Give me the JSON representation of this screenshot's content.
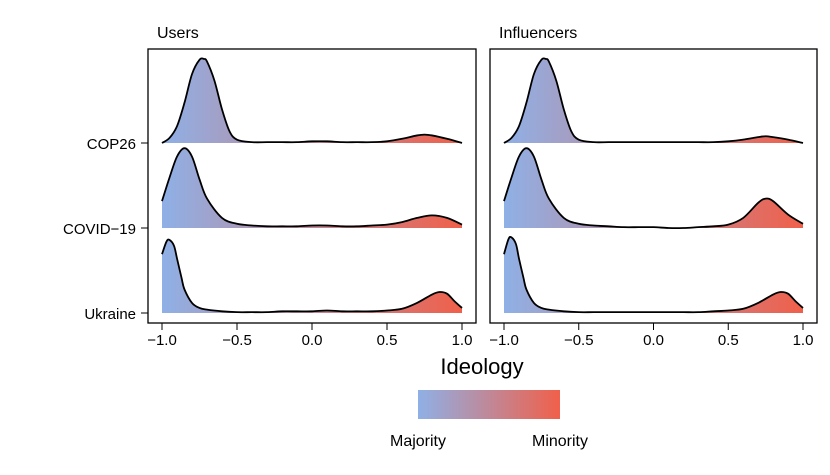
{
  "chart_data": {
    "type": "ridgeline-density",
    "xlabel": "Ideology",
    "xlim": [
      -1.0,
      1.0
    ],
    "x_ticks": [
      -1.0,
      -0.5,
      0.0,
      0.5,
      1.0
    ],
    "x_tick_labels": [
      "−1.0",
      "−0.5",
      "0.0",
      "0.5",
      "1.0"
    ],
    "rows": [
      "COP26",
      "COVID−19",
      "Ukraine"
    ],
    "fill_gradient": {
      "from": "#8fb0e6",
      "to": "#f0604a",
      "axis": "ideology"
    },
    "legend": {
      "low_label": "Majority",
      "high_label": "Minority",
      "placement": "bottom-center"
    },
    "grid": false,
    "panels": [
      {
        "title": "Users",
        "series": [
          {
            "row": "COP26",
            "x": [
              -1.0,
              -0.95,
              -0.9,
              -0.85,
              -0.8,
              -0.75,
              -0.72,
              -0.7,
              -0.65,
              -0.6,
              -0.55,
              -0.5,
              -0.4,
              -0.3,
              -0.2,
              -0.1,
              0.0,
              0.1,
              0.2,
              0.3,
              0.4,
              0.5,
              0.6,
              0.7,
              0.75,
              0.8,
              0.9,
              1.0
            ],
            "density": [
              0.0,
              0.06,
              0.2,
              0.48,
              0.82,
              0.99,
              1.0,
              0.97,
              0.74,
              0.4,
              0.14,
              0.04,
              0.01,
              0.01,
              0.01,
              0.01,
              0.02,
              0.02,
              0.01,
              0.01,
              0.01,
              0.02,
              0.05,
              0.09,
              0.1,
              0.09,
              0.05,
              0.0
            ]
          },
          {
            "row": "COVID−19",
            "x": [
              -1.0,
              -0.95,
              -0.9,
              -0.85,
              -0.8,
              -0.75,
              -0.7,
              -0.6,
              -0.5,
              -0.4,
              -0.3,
              -0.2,
              -0.1,
              0.0,
              0.1,
              0.2,
              0.3,
              0.4,
              0.5,
              0.6,
              0.7,
              0.8,
              0.9,
              1.0
            ],
            "density": [
              0.32,
              0.6,
              0.85,
              0.95,
              0.85,
              0.58,
              0.35,
              0.12,
              0.05,
              0.03,
              0.02,
              0.02,
              0.02,
              0.03,
              0.03,
              0.02,
              0.02,
              0.03,
              0.04,
              0.07,
              0.12,
              0.15,
              0.12,
              0.04
            ]
          },
          {
            "row": "Ukraine",
            "x": [
              -1.0,
              -0.97,
              -0.95,
              -0.92,
              -0.9,
              -0.87,
              -0.85,
              -0.8,
              -0.75,
              -0.7,
              -0.6,
              -0.5,
              -0.4,
              -0.3,
              -0.2,
              -0.1,
              0.0,
              0.1,
              0.2,
              0.3,
              0.4,
              0.5,
              0.6,
              0.7,
              0.8,
              0.85,
              0.9,
              0.95,
              1.0
            ],
            "density": [
              0.7,
              0.85,
              0.87,
              0.8,
              0.65,
              0.42,
              0.28,
              0.12,
              0.06,
              0.04,
              0.02,
              0.01,
              0.01,
              0.01,
              0.02,
              0.02,
              0.02,
              0.03,
              0.02,
              0.02,
              0.02,
              0.03,
              0.05,
              0.12,
              0.22,
              0.25,
              0.23,
              0.14,
              0.06
            ]
          }
        ]
      },
      {
        "title": "Influencers",
        "series": [
          {
            "row": "COP26",
            "x": [
              -1.0,
              -0.95,
              -0.9,
              -0.85,
              -0.8,
              -0.75,
              -0.72,
              -0.7,
              -0.65,
              -0.6,
              -0.55,
              -0.5,
              -0.4,
              -0.3,
              -0.2,
              -0.1,
              0.0,
              0.1,
              0.2,
              0.3,
              0.4,
              0.5,
              0.6,
              0.7,
              0.75,
              0.8,
              0.9,
              1.0
            ],
            "density": [
              0.0,
              0.06,
              0.2,
              0.48,
              0.82,
              0.99,
              1.0,
              0.97,
              0.74,
              0.4,
              0.14,
              0.04,
              0.01,
              0.01,
              0.01,
              0.01,
              0.01,
              0.01,
              0.01,
              0.01,
              0.01,
              0.02,
              0.04,
              0.07,
              0.08,
              0.07,
              0.04,
              0.0
            ]
          },
          {
            "row": "COVID−19",
            "x": [
              -1.0,
              -0.95,
              -0.9,
              -0.85,
              -0.8,
              -0.75,
              -0.7,
              -0.6,
              -0.5,
              -0.4,
              -0.3,
              -0.2,
              -0.1,
              0.0,
              0.1,
              0.2,
              0.3,
              0.4,
              0.5,
              0.6,
              0.7,
              0.75,
              0.8,
              0.9,
              1.0
            ],
            "density": [
              0.32,
              0.6,
              0.85,
              0.95,
              0.85,
              0.58,
              0.35,
              0.12,
              0.05,
              0.03,
              0.02,
              0.01,
              0.01,
              0.01,
              0.0,
              0.0,
              0.01,
              0.02,
              0.04,
              0.12,
              0.3,
              0.35,
              0.32,
              0.16,
              0.05
            ]
          },
          {
            "row": "Ukraine",
            "x": [
              -1.0,
              -0.97,
              -0.95,
              -0.92,
              -0.9,
              -0.87,
              -0.85,
              -0.8,
              -0.75,
              -0.7,
              -0.6,
              -0.5,
              -0.4,
              -0.3,
              -0.2,
              -0.1,
              0.0,
              0.1,
              0.2,
              0.3,
              0.4,
              0.5,
              0.6,
              0.7,
              0.8,
              0.85,
              0.9,
              0.95,
              1.0
            ],
            "density": [
              0.7,
              0.88,
              0.9,
              0.82,
              0.65,
              0.42,
              0.28,
              0.12,
              0.06,
              0.04,
              0.02,
              0.01,
              0.01,
              0.01,
              0.01,
              0.01,
              0.01,
              0.01,
              0.01,
              0.01,
              0.02,
              0.03,
              0.05,
              0.12,
              0.22,
              0.25,
              0.23,
              0.14,
              0.06
            ]
          }
        ]
      }
    ]
  }
}
